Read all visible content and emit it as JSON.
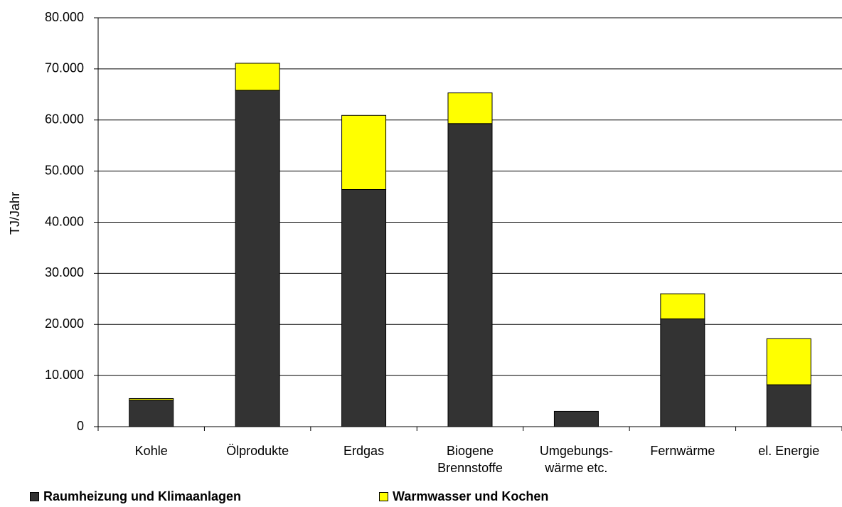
{
  "chart_data": {
    "type": "stacked-bar",
    "y_label": "TJ/Jahr",
    "categories": [
      "Kohle",
      "Ölprodukte",
      "Erdgas",
      "Biogene Brennstoffe",
      "Umgebungs- wärme etc.",
      "Fernwärme",
      "el. Energie"
    ],
    "series": [
      {
        "name": "Raumheizung und Klimaanlagen",
        "color": "#333333",
        "values": [
          5200,
          65800,
          46400,
          59300,
          3000,
          21100,
          8200
        ]
      },
      {
        "name": "Warmwasser und Kochen",
        "color": "#ffff00",
        "values": [
          300,
          5300,
          14500,
          6000,
          0,
          4900,
          9000
        ]
      }
    ],
    "ylim": [
      0,
      80000
    ],
    "yticks": [
      0,
      {
        "value": 10000,
        "label": "10.000"
      },
      {
        "value": 20000,
        "label": "20.000"
      },
      {
        "value": 30000,
        "label": "30.000"
      },
      {
        "value": 40000,
        "label": "40.000"
      },
      {
        "value": 50000,
        "label": "50.000"
      },
      {
        "value": 60000,
        "label": "60.000"
      },
      {
        "value": 70000,
        "label": "70.000"
      },
      {
        "value": 80000,
        "label": "80.000"
      }
    ],
    "grid": true
  }
}
